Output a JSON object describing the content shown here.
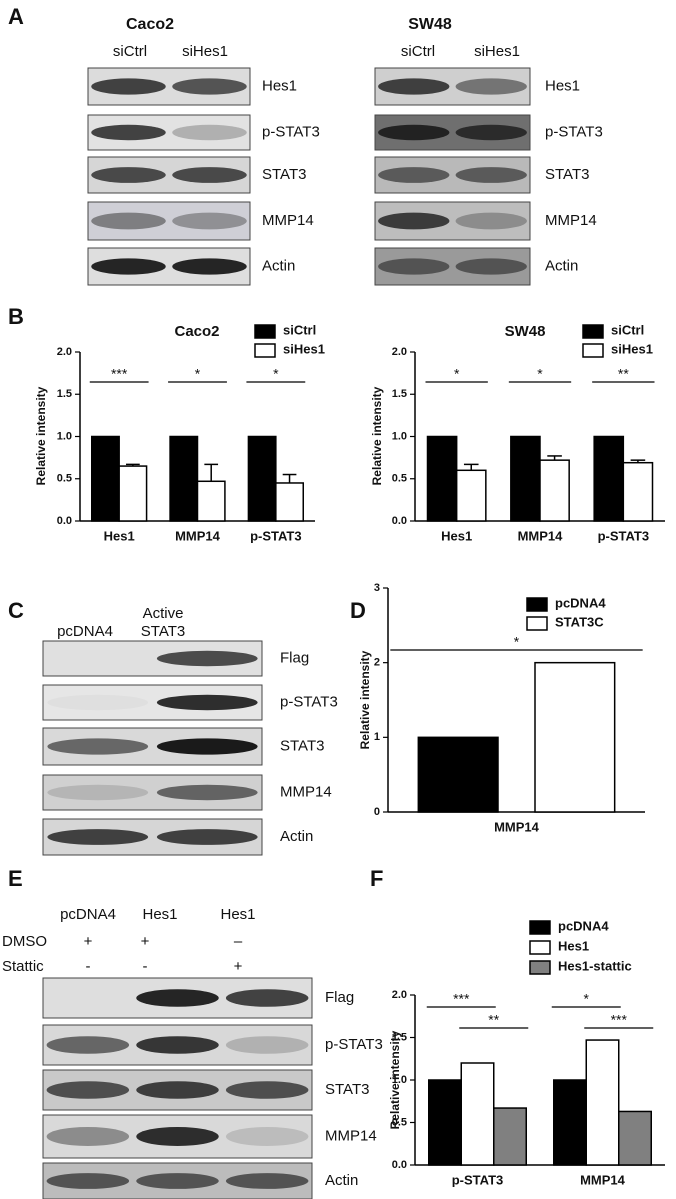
{
  "panel_labels": [
    "A",
    "B",
    "C",
    "D",
    "E",
    "F"
  ],
  "blots": {
    "caco2": {
      "title": "Caco2",
      "lanes": [
        "siCtrl",
        "siHes1"
      ],
      "bands": [
        "Hes1",
        "p-STAT3",
        "STAT3",
        "MMP14",
        "Actin"
      ]
    },
    "sw48": {
      "title": "SW48",
      "lanes": [
        "siCtrl",
        "siHes1"
      ],
      "bands": [
        "Hes1",
        "p-STAT3",
        "STAT3",
        "MMP14",
        "Actin"
      ]
    },
    "c": {
      "lanes": [
        "pcDNA4",
        "Active\nSTAT3"
      ],
      "bands": [
        "Flag",
        "p-STAT3",
        "STAT3",
        "MMP14",
        "Actin"
      ]
    },
    "e": {
      "lanes": [
        "pcDNA4",
        "Hes1",
        "Hes1"
      ],
      "treatments": [
        {
          "name": "DMSO",
          "marks": [
            "+",
            "+",
            "–"
          ]
        },
        {
          "name": "Stattic",
          "marks": [
            "-",
            "-",
            "+"
          ]
        }
      ],
      "bands": [
        "Flag",
        "p-STAT3",
        "STAT3",
        "MMP14",
        "Actin"
      ]
    }
  },
  "chart_data": [
    {
      "type": "bar",
      "title": "Caco2",
      "y_label": "Relative intensity",
      "categories": [
        "Hes1",
        "MMP14",
        "p-STAT3"
      ],
      "series": [
        {
          "name": "siCtrl",
          "color": "#000000",
          "values": [
            1,
            1,
            1
          ]
        },
        {
          "name": "siHes1",
          "color": "#ffffff",
          "values": [
            0.65,
            0.47,
            0.45
          ],
          "errors": [
            0.02,
            0.2,
            0.1
          ]
        }
      ],
      "ylim": [
        0,
        2
      ],
      "yticks": [
        {
          "value": 0,
          "label": "0.0"
        },
        {
          "value": 0.5,
          "label": "0.5"
        },
        {
          "value": 1,
          "label": "1.0"
        },
        {
          "value": 1.5,
          "label": "1.5"
        },
        {
          "value": 2,
          "label": "2.0"
        }
      ],
      "annotations": [
        "***",
        "*",
        "*"
      ]
    },
    {
      "type": "bar",
      "title": "SW48",
      "y_label": "Relative intensity",
      "categories": [
        "Hes1",
        "MMP14",
        "p-STAT3"
      ],
      "series": [
        {
          "name": "siCtrl",
          "color": "#000000",
          "values": [
            1,
            1,
            1
          ]
        },
        {
          "name": "siHes1",
          "color": "#ffffff",
          "values": [
            0.6,
            0.72,
            0.69
          ],
          "errors": [
            0.07,
            0.05,
            0.03
          ]
        }
      ],
      "ylim": [
        0,
        2
      ],
      "yticks": [
        {
          "value": 0,
          "label": "0.0"
        },
        {
          "value": 0.5,
          "label": "0.5"
        },
        {
          "value": 1,
          "label": "1.0"
        },
        {
          "value": 1.5,
          "label": "1.5"
        },
        {
          "value": 2,
          "label": "2.0"
        }
      ],
      "annotations": [
        "*",
        "*",
        "**"
      ]
    },
    {
      "type": "bar",
      "y_label": "Relative intensity",
      "categories": [
        "MMP14"
      ],
      "series": [
        {
          "name": "pcDNA4",
          "color": "#000000",
          "values": [
            1
          ]
        },
        {
          "name": "STAT3C",
          "color": "#ffffff",
          "values": [
            2
          ]
        }
      ],
      "ylim": [
        0,
        3
      ],
      "yticks": [
        0,
        1,
        2,
        3
      ],
      "annotations": [
        "*"
      ]
    },
    {
      "type": "bar",
      "y_label": "Relative intensity",
      "categories": [
        "p-STAT3",
        "MMP14"
      ],
      "series": [
        {
          "name": "pcDNA4",
          "color": "#000000",
          "values": [
            1,
            1
          ]
        },
        {
          "name": "Hes1",
          "color": "#ffffff",
          "values": [
            1.2,
            1.47
          ]
        },
        {
          "name": "Hes1-stattic",
          "color": "#808080",
          "values": [
            0.67,
            0.63
          ]
        }
      ],
      "ylim": [
        0,
        2
      ],
      "yticks": [
        {
          "value": 0,
          "label": "0.0"
        },
        {
          "value": 0.5,
          "label": "0.5"
        },
        {
          "value": 1,
          "label": "1.0"
        },
        {
          "value": 1.5,
          "label": "1.5"
        },
        {
          "value": 2,
          "label": "2.0"
        }
      ],
      "annotations": [
        "***",
        "**",
        "*",
        "***"
      ]
    }
  ]
}
